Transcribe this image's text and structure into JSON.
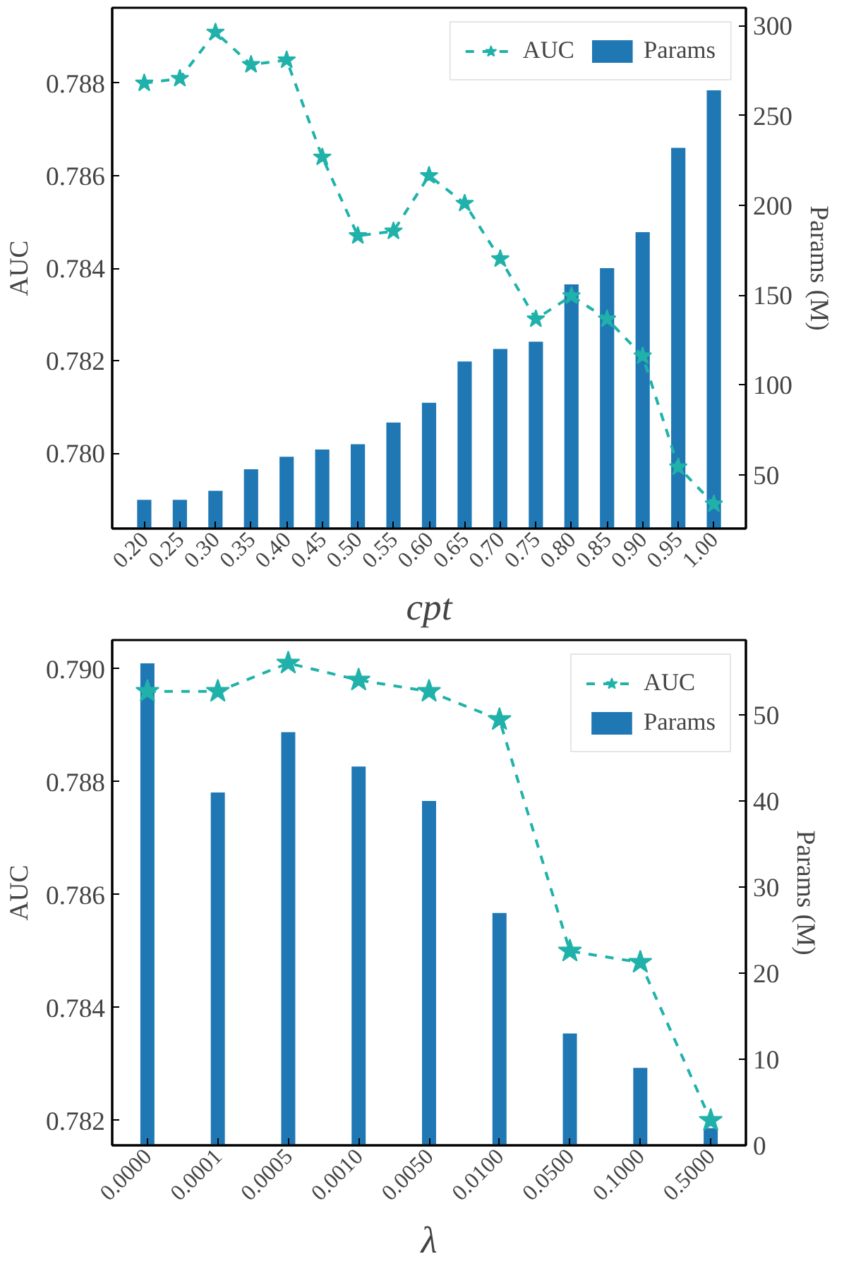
{
  "chart_data": [
    {
      "type": "bar",
      "xlabel": "cpt",
      "ylabel": "AUC",
      "y2label": "Params (M)",
      "categories": [
        "0.20",
        "0.25",
        "0.30",
        "0.35",
        "0.40",
        "0.45",
        "0.50",
        "0.55",
        "0.60",
        "0.65",
        "0.70",
        "0.75",
        "0.80",
        "0.85",
        "0.90",
        "0.95",
        "1.00"
      ],
      "series": [
        {
          "name": "AUC",
          "type": "line",
          "color": "#20b2aa",
          "marker": "star",
          "line_style": "dashed",
          "values": [
            0.788,
            0.7881,
            0.7891,
            0.7884,
            0.7885,
            0.7864,
            0.7847,
            0.7848,
            0.786,
            0.7854,
            0.7842,
            0.7829,
            0.7834,
            0.7829,
            0.7821,
            0.7797,
            0.7789
          ]
        },
        {
          "name": "Params",
          "axis": "y2",
          "color": "#1f77b4",
          "values": [
            36,
            36,
            41,
            53,
            60,
            64,
            67,
            79,
            90,
            113,
            120,
            124,
            156,
            165,
            185,
            232,
            264
          ]
        }
      ],
      "ylim": [
        0.77837,
        0.78963
      ],
      "yticks": [
        {
          "value": 0.78,
          "label": "0.780"
        },
        {
          "value": 0.782,
          "label": "0.782"
        },
        {
          "value": 0.784,
          "label": "0.784"
        },
        {
          "value": 0.786,
          "label": "0.786"
        },
        {
          "value": 0.788,
          "label": "0.788"
        }
      ],
      "y2lim": [
        20,
        310
      ],
      "y2ticks": [
        50,
        100,
        150,
        200,
        250,
        300
      ],
      "legend": "top right",
      "grid": false
    },
    {
      "type": "bar",
      "xlabel": "λ",
      "ylabel": "AUC",
      "y2label": "Params (M)",
      "categories": [
        "0.0000",
        "0.0001",
        "0.0005",
        "0.0010",
        "0.0050",
        "0.0100",
        "0.0500",
        "0.1000",
        "0.5000"
      ],
      "series": [
        {
          "name": "AUC",
          "type": "line",
          "color": "#20b2aa",
          "marker": "star",
          "line_style": "dashed",
          "values": [
            0.7896,
            0.7896,
            0.7901,
            0.7898,
            0.7896,
            0.7891,
            0.785,
            0.7848,
            0.782
          ]
        },
        {
          "name": "Params",
          "axis": "y2",
          "color": "#1f77b4",
          "values": [
            56,
            41,
            48,
            44,
            40,
            27,
            13,
            9,
            2
          ]
        }
      ],
      "ylim": [
        0.78156,
        0.79051
      ],
      "yticks": [
        {
          "value": 0.782,
          "label": "0.782"
        },
        {
          "value": 0.784,
          "label": "0.784"
        },
        {
          "value": 0.786,
          "label": "0.786"
        },
        {
          "value": 0.788,
          "label": "0.788"
        },
        {
          "value": 0.79,
          "label": "0.790"
        }
      ],
      "y2lim": [
        0,
        58.7
      ],
      "y2ticks": [
        0,
        10,
        20,
        30,
        40,
        50
      ],
      "legend": "top right",
      "grid": false
    }
  ]
}
